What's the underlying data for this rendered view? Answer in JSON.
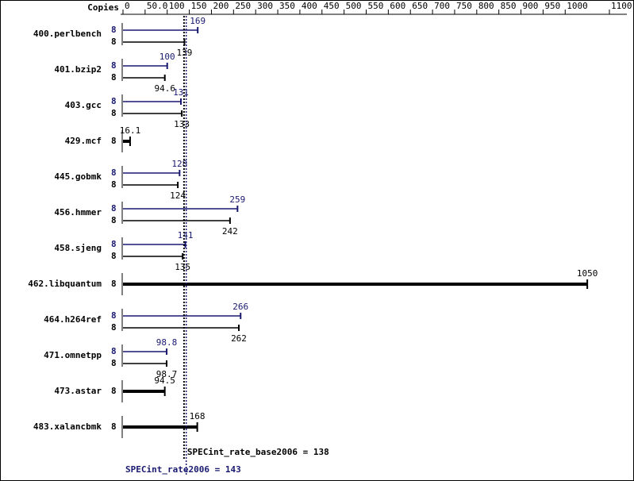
{
  "chart_data": {
    "type": "spec-bar",
    "x_label": "Copies",
    "categories": [
      "400.perlbench",
      "401.bzip2",
      "403.gcc",
      "429.mcf",
      "445.gobmk",
      "456.hmmer",
      "458.sjeng",
      "462.libquantum",
      "464.h264ref",
      "471.omnetpp",
      "473.astar",
      "483.xalancbmk"
    ],
    "series": [
      {
        "name": "SPECint_rate2006",
        "color": "#191970",
        "copies": [
          8,
          8,
          8,
          null,
          8,
          8,
          8,
          null,
          8,
          8,
          null,
          null
        ],
        "values": [
          169,
          100,
          131,
          null,
          128,
          259,
          141,
          null,
          266,
          98.8,
          null,
          null
        ]
      },
      {
        "name": "SPECint_rate_base2006",
        "color": "#000000",
        "copies": [
          8,
          8,
          8,
          8,
          8,
          8,
          8,
          8,
          8,
          8,
          8,
          8
        ],
        "values": [
          139,
          94.6,
          133,
          16.1,
          124,
          242,
          135,
          1050,
          262,
          98.7,
          94.5,
          168
        ]
      }
    ],
    "reference_lines": [
      {
        "label": "SPECint_rate_base2006 = 138",
        "value": 138,
        "color": "#000000"
      },
      {
        "label": "SPECint_rate2006 = 143",
        "value": 143,
        "color": "#191970"
      }
    ],
    "xlim": [
      0,
      1100
    ],
    "xticks": [
      0,
      {
        "value": 50,
        "label": "50.0"
      },
      100,
      150,
      200,
      250,
      300,
      350,
      400,
      450,
      500,
      550,
      600,
      650,
      700,
      750,
      800,
      850,
      900,
      950,
      1000,
      1100
    ]
  }
}
